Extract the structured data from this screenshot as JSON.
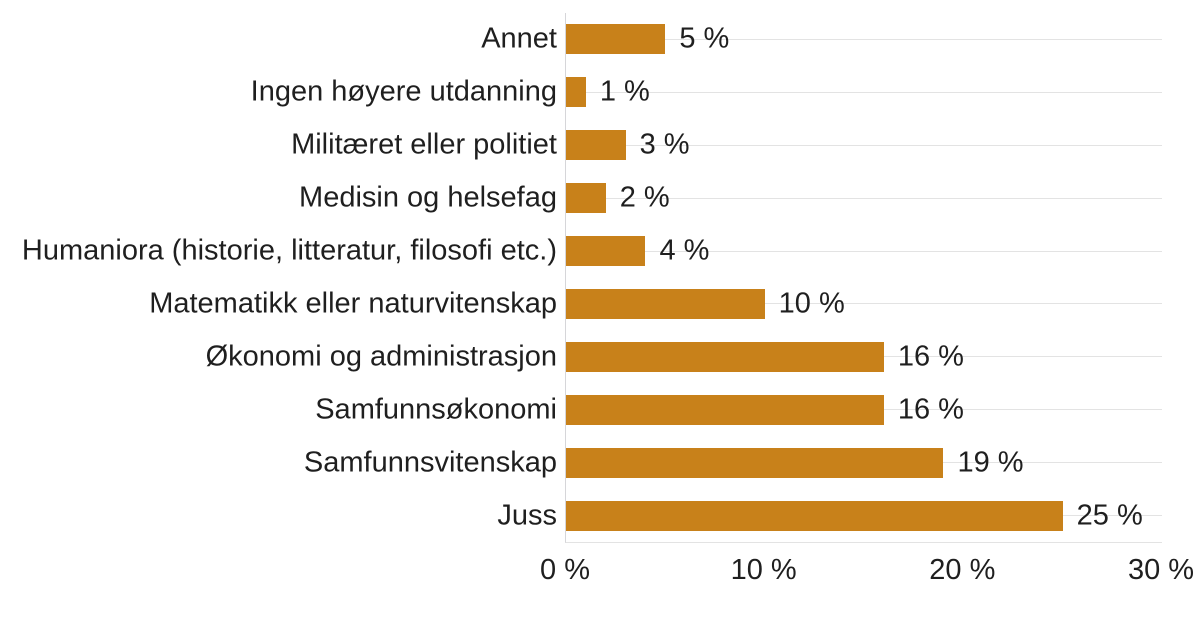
{
  "chart_data": {
    "type": "bar",
    "orientation": "horizontal",
    "title": "",
    "categories": [
      "Annet",
      "Ingen høyere utdanning",
      "Militæret eller politiet",
      "Medisin og helsefag",
      "Humaniora (historie, litteratur, filosofi etc.)",
      "Matematikk eller naturvitenskap",
      "Økonomi og administrasjon",
      "Samfunnsøkonomi",
      "Samfunnsvitenskap",
      "Juss"
    ],
    "values": [
      5,
      1,
      3,
      2,
      4,
      10,
      16,
      16,
      19,
      25
    ],
    "value_labels": [
      "5 %",
      "1 %",
      "3 %",
      "2 %",
      "4 %",
      "10 %",
      "16 %",
      "16 %",
      "19 %",
      "25 %"
    ],
    "xlim": [
      0,
      30
    ],
    "x_tick_values": [
      0,
      10,
      20,
      30
    ],
    "x_ticks": [
      "0 %",
      "10 %",
      "20 %",
      "30 %"
    ],
    "grid": "horizontal-per-row",
    "legend": "none",
    "colors": {
      "bar": "#C8811A",
      "gridline": "#e3e3e3",
      "axis_line": "#d6d6d9",
      "text": "#1f1f1f",
      "background": "#ffffff"
    }
  }
}
